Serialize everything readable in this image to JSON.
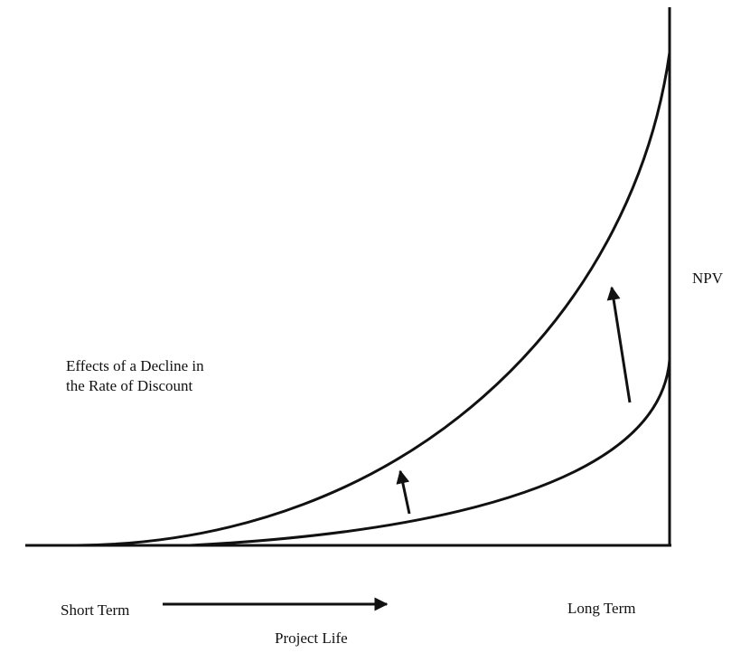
{
  "annotation": {
    "lines": [
      "Effects of a Decline in",
      "the Rate of Discount"
    ]
  },
  "axis_labels": {
    "y": "NPV",
    "x_start": "Short Term",
    "x_end": "Long Term",
    "x": "Project Life"
  }
}
